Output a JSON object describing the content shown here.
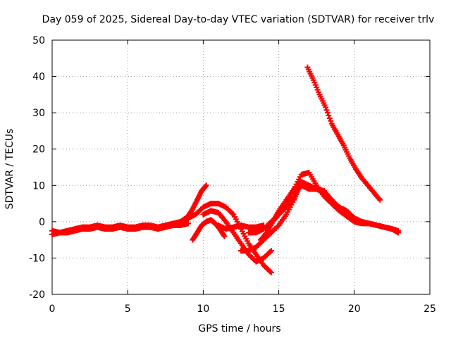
{
  "chart_data": {
    "type": "scatter",
    "title": "Day 059 of 2025, Sidereal Day-to-day VTEC variation (SDTVAR) for receiver trlv",
    "xlabel": "GPS time / hours",
    "ylabel": "SDTVAR / TECUs",
    "xlim": [
      0,
      25
    ],
    "ylim": [
      -20,
      50
    ],
    "xticks": [
      0,
      5,
      10,
      15,
      20,
      25
    ],
    "yticks": [
      -20,
      -10,
      0,
      10,
      20,
      30,
      40,
      50
    ],
    "grid": true,
    "marker": "+",
    "color": "#ff0000",
    "series": [
      {
        "name": "trace-1",
        "x": [
          0,
          0.5,
          1,
          1.5,
          2,
          2.5,
          3,
          3.5,
          4,
          4.5,
          5,
          5.5,
          6,
          6.5,
          7,
          7.5,
          8,
          8.5,
          9,
          9.3
        ],
        "y": [
          -2.5,
          -3,
          -2.5,
          -2,
          -1.5,
          -1.5,
          -1,
          -1.5,
          -1.5,
          -1,
          -1.5,
          -1.5,
          -1,
          -1,
          -1.5,
          -1,
          -0.5,
          0,
          1,
          2
        ]
      },
      {
        "name": "trace-2",
        "x": [
          0,
          0.5,
          1,
          1.5,
          2,
          2.5,
          3,
          3.5,
          4,
          4.5,
          5,
          5.5,
          6,
          6.5,
          7,
          7.5,
          8,
          8.5,
          9
        ],
        "y": [
          -3.5,
          -3,
          -3,
          -2.5,
          -2,
          -2,
          -1.5,
          -2,
          -2,
          -1.5,
          -2,
          -2,
          -1.5,
          -1.5,
          -2,
          -1.5,
          -1,
          -1,
          -0.5
        ]
      },
      {
        "name": "trace-3",
        "x": [
          8.5,
          9,
          9.3,
          9.6,
          9.9,
          10.2
        ],
        "y": [
          0,
          1.5,
          3.5,
          6,
          8.5,
          10
        ]
      },
      {
        "name": "trace-4",
        "x": [
          8,
          8.5,
          9,
          9.5,
          10,
          10.5,
          11,
          11.5,
          12,
          12.5,
          13,
          13.5,
          14,
          14.5
        ],
        "y": [
          -1,
          0,
          1,
          2,
          4,
          5,
          5,
          4,
          2,
          -2,
          -6,
          -9,
          -12,
          -14
        ]
      },
      {
        "name": "trace-5",
        "x": [
          9.3,
          9.6,
          9.9,
          10.2,
          10.5,
          10.8,
          11.1,
          11.4
        ],
        "y": [
          -5,
          -3,
          -1,
          0,
          0.5,
          -0.5,
          -2,
          -4
        ]
      },
      {
        "name": "trace-6",
        "x": [
          10,
          10.5,
          11,
          11.5,
          12,
          12.5,
          13,
          13.5,
          14,
          14.5
        ],
        "y": [
          2,
          3,
          2.5,
          0,
          -3,
          -6,
          -9,
          -11,
          -10,
          -8
        ]
      },
      {
        "name": "trace-7",
        "x": [
          11,
          11.5,
          12,
          12.5,
          13,
          13.5,
          14
        ],
        "y": [
          -1,
          -2,
          -1.5,
          -1,
          -1.5,
          -1.5,
          -1
        ]
      },
      {
        "name": "trace-8",
        "x": [
          12.5,
          13,
          13.5,
          14,
          14.5,
          15,
          15.5,
          16,
          16.3
        ],
        "y": [
          -8,
          -8,
          -7,
          -5,
          -3,
          -1,
          2,
          6,
          9
        ]
      },
      {
        "name": "trace-9",
        "x": [
          13,
          13.5,
          14,
          14.5,
          15,
          15.5,
          16,
          16.5,
          17,
          17.5,
          18,
          18.5,
          19,
          19.5,
          20,
          20.5,
          21,
          21.5,
          22,
          22.5,
          22.9
        ],
        "y": [
          -3,
          -3,
          -2,
          0,
          2,
          5,
          9,
          13,
          13.5,
          10,
          7,
          5,
          3,
          1.5,
          0,
          -0.5,
          -0.5,
          -1,
          -1.5,
          -2,
          -2.5
        ]
      },
      {
        "name": "trace-10",
        "x": [
          13.8,
          14.2,
          14.6,
          15,
          15.5,
          16,
          16.5,
          17,
          17.5,
          18,
          18.5,
          19,
          19.5,
          20,
          20.5,
          21,
          21.5,
          22,
          22.5,
          22.9
        ],
        "y": [
          -5,
          -3,
          0,
          3,
          6,
          9,
          11,
          10,
          9,
          8,
          6,
          4,
          2,
          1,
          0,
          -0.5,
          -1,
          -1.5,
          -2,
          -3
        ]
      },
      {
        "name": "trace-11",
        "x": [
          14.2,
          14.6,
          15,
          15.5,
          16,
          16.5,
          17,
          17.5,
          18,
          18.5,
          19,
          19.5,
          20
        ],
        "y": [
          -2,
          0,
          2,
          4,
          7,
          10,
          9,
          9,
          8.5,
          6,
          4,
          3,
          1
        ]
      },
      {
        "name": "trace-12",
        "x": [
          16.9,
          17.3,
          17.7,
          18.1,
          18.5,
          18.9,
          19.3,
          19.7,
          20.1,
          20.5,
          20.9,
          21.3,
          21.7
        ],
        "y": [
          42.5,
          39,
          35,
          31.5,
          27,
          24,
          21,
          17.5,
          14.5,
          12,
          10,
          8,
          6
        ]
      }
    ]
  }
}
